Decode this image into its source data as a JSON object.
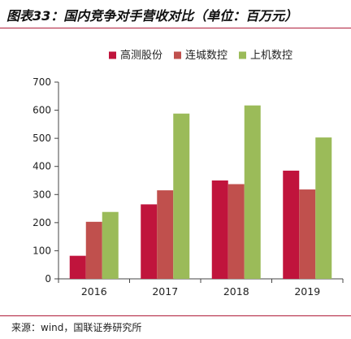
{
  "header": {
    "title": "图表33：国内竞争对手营收对比（单位：百万元）"
  },
  "footer": {
    "source": "来源：wind，国联证券研究所"
  },
  "chart_data": {
    "type": "bar",
    "title": "图表33：国内竞争对手营收对比（单位：百万元）",
    "categories": [
      "2016",
      "2017",
      "2018",
      "2019"
    ],
    "series": [
      {
        "name": "高测股份",
        "values": [
          82,
          265,
          350,
          385
        ],
        "color": "#c0143c"
      },
      {
        "name": "连城数控",
        "values": [
          203,
          315,
          337,
          318
        ],
        "color": "#c0504d"
      },
      {
        "name": "上机数控",
        "values": [
          238,
          588,
          617,
          503
        ],
        "color": "#9bbb59"
      }
    ],
    "ylim": [
      0,
      700
    ],
    "yticks": [
      0,
      100,
      200,
      300,
      400,
      500,
      600,
      700
    ],
    "xlabel": "",
    "ylabel": "",
    "grid": false,
    "legend_position": "top"
  }
}
